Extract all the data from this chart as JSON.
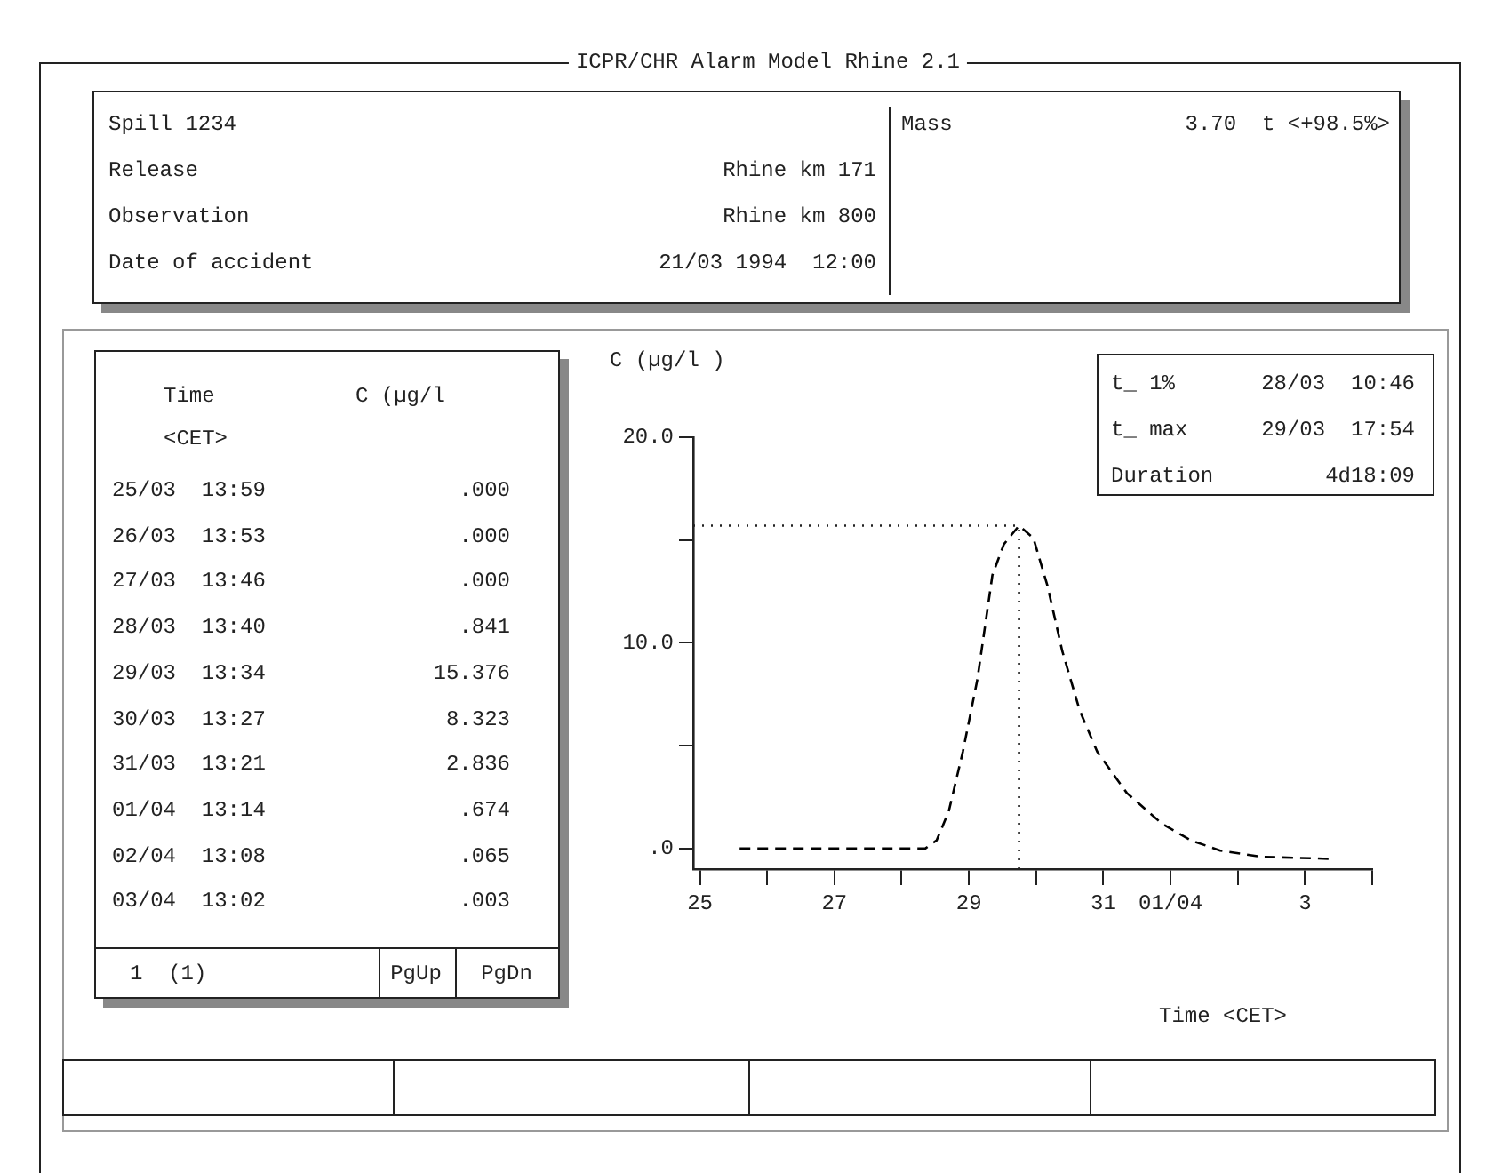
{
  "chart_data": {
    "type": "line",
    "title": "ICPR/CHR Alarm Model Rhine 2.1",
    "xlabel": "Time <CET>",
    "ylabel": "C (µg/l )",
    "line_style": "dashed",
    "x": [
      "1994-03-25T14:10",
      "1994-03-28T08:24",
      "1994-03-28T12:30",
      "1994-03-28T16:48",
      "1994-03-28T21:50",
      "1994-03-29T03:00",
      "1994-03-29T08:24",
      "1994-03-29T12:30",
      "1994-03-29T17:54",
      "1994-03-29T23:00",
      "1994-03-30T04:00",
      "1994-03-30T09:20",
      "1994-03-30T15:36",
      "1994-03-30T21:50",
      "1994-03-31T08:24",
      "1994-03-31T21:00",
      "1994-04-01T07:12",
      "1994-04-01T17:46",
      "1994-04-02T08:24",
      "1994-04-03T08:24"
    ],
    "series": [
      {
        "color": "#000000",
        "values": [
          0,
          0,
          0.4,
          1.8,
          4.7,
          8.2,
          13.3,
          14.8,
          15.7,
          15.1,
          12.8,
          9.6,
          6.7,
          4.7,
          2.7,
          1.2,
          0.4,
          -0.1,
          -0.4,
          -0.5
        ]
      }
    ],
    "xlim": [
      "1994-03-24T21:36",
      "1994-04-04"
    ],
    "xticks": [
      {
        "value": "1994-03-25",
        "label": "25"
      },
      {
        "value": "1994-03-26",
        "label": null
      },
      {
        "value": "1994-03-27",
        "label": "27"
      },
      {
        "value": "1994-03-28",
        "label": null
      },
      {
        "value": "1994-03-29",
        "label": "29"
      },
      {
        "value": "1994-03-30",
        "label": null
      },
      {
        "value": "1994-03-31",
        "label": "31"
      },
      {
        "value": "1994-04-01",
        "label": "01/04"
      },
      {
        "value": "1994-04-02",
        "label": null
      },
      {
        "value": "1994-04-03",
        "label": "3"
      },
      {
        "value": "1994-04-04",
        "label": null
      }
    ],
    "ylim": [
      -1,
      20
    ],
    "yticks": [
      {
        "value": 0,
        "label": ".0"
      },
      {
        "value": 5,
        "label": null
      },
      {
        "value": 10,
        "label": "10.0"
      },
      {
        "value": 15,
        "label": null
      },
      {
        "value": 20,
        "label": "20.0"
      }
    ],
    "ref_lines": [
      {
        "axis": "y",
        "value": 15.7,
        "line_style": "dotted"
      },
      {
        "axis": "x",
        "value": "1994-03-29T17:54",
        "line_style": "dotted"
      }
    ],
    "annotations": [
      "Spill 1234",
      "Release",
      "Rhine km 171",
      "Observation",
      "Rhine km 800",
      "Date of accident",
      "21/03 1994  12:00",
      "Mass",
      "3.70  t <+98.5%>",
      "Time",
      "<CET>",
      "C (µg/l",
      "25/03  13:59",
      ".000",
      "26/03  13:53",
      ".000",
      "27/03  13:46",
      ".000",
      "28/03  13:40",
      ".841",
      "29/03  13:34",
      "15.376",
      "30/03  13:27",
      "8.323",
      "31/03  13:21",
      "2.836",
      "01/04  13:14",
      ".674",
      "02/04  13:08",
      ".065",
      "03/04  13:02",
      ".003",
      "1  (1)",
      "PgUp",
      "PgDn",
      "t_ 1%",
      "28/03  10:46",
      "t_ max",
      "29/03  17:54",
      "Duration",
      "4d18:09"
    ]
  }
}
